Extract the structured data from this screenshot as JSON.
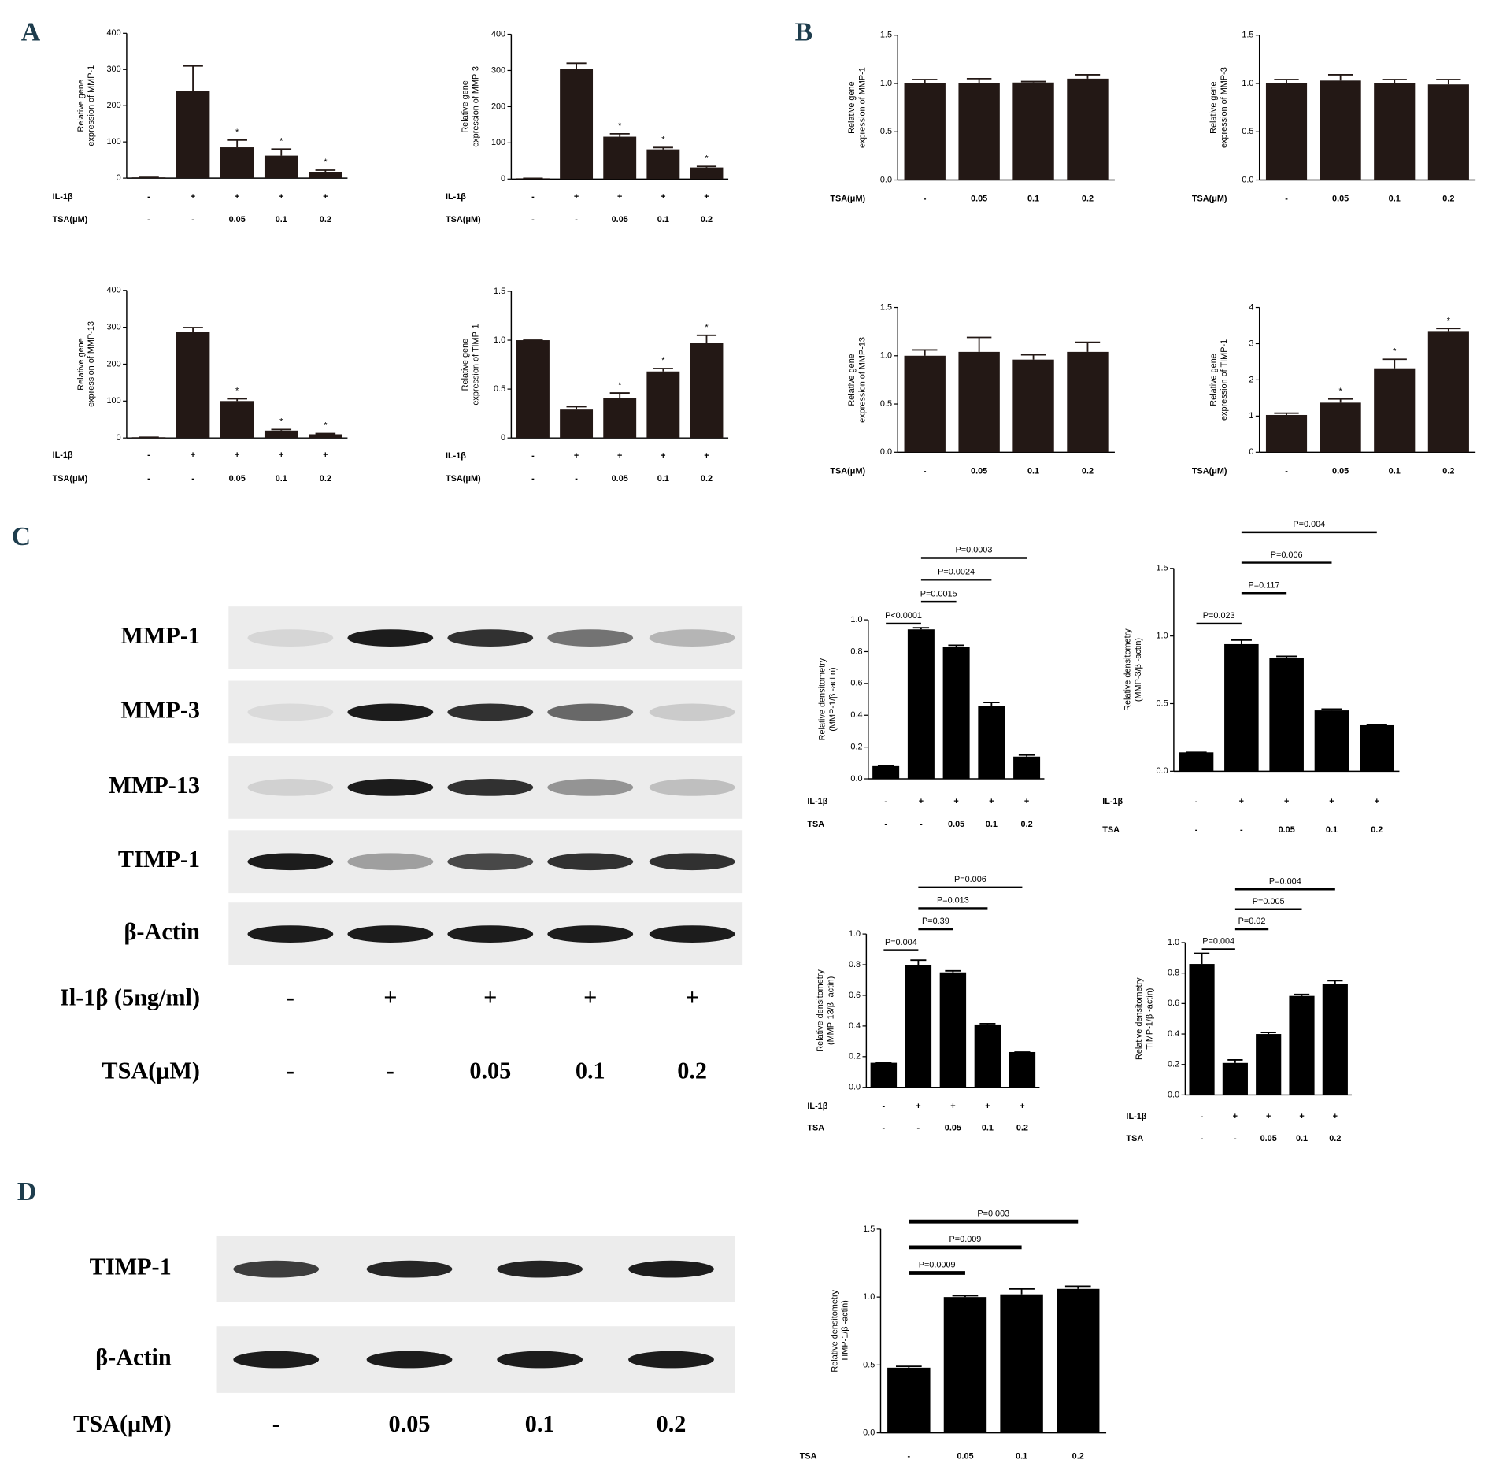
{
  "panel_labels": [
    "A",
    "B",
    "C",
    "D"
  ],
  "blot_c": {
    "proteins": [
      "MMP-1",
      "MMP-3",
      "MMP-13",
      "TIMP-1",
      "β-Actin"
    ],
    "rows": [
      {
        "name": "Il-1β (5ng/ml)",
        "labels": [
          "-",
          "+",
          "+",
          "+",
          "+"
        ]
      },
      {
        "name": "TSA(μM)",
        "labels": [
          "-",
          "-",
          "0.05",
          "0.1",
          "0.2"
        ]
      }
    ]
  },
  "blot_d": {
    "proteins": [
      "TIMP-1",
      "β-Actin"
    ],
    "rows": [
      {
        "name": "TSA(μM)",
        "labels": [
          "-",
          "0.05",
          "0.1",
          "0.2"
        ]
      }
    ]
  },
  "chart_data": [
    {
      "type": "bar",
      "ylabel": [
        "Relative gene",
        "expression of MMP-1"
      ],
      "rows": [
        {
          "name": "IL-1β",
          "labels": [
            "-",
            "+",
            "+",
            "+",
            "+"
          ]
        },
        {
          "name": "TSA(μM)",
          "labels": [
            "-",
            "-",
            "0.05",
            "0.1",
            "0.2"
          ]
        }
      ],
      "values": [
        2,
        240,
        85,
        62,
        17
      ],
      "errors": [
        0,
        70,
        20,
        18,
        5
      ],
      "annotations": [
        null,
        null,
        "*",
        "*",
        "*"
      ],
      "ylim": [
        0,
        400
      ],
      "yticks": [
        0,
        100,
        200,
        300,
        400
      ],
      "color": "#231815"
    },
    {
      "type": "bar",
      "ylabel": [
        "Relative gene",
        "expression of MMP-3"
      ],
      "rows": [
        {
          "name": "IL-1β",
          "labels": [
            "-",
            "+",
            "+",
            "+",
            "+"
          ]
        },
        {
          "name": "TSA(μM)",
          "labels": [
            "-",
            "-",
            "0.05",
            "0.1",
            "0.2"
          ]
        }
      ],
      "values": [
        2,
        305,
        117,
        82,
        32
      ],
      "errors": [
        0,
        15,
        8,
        5,
        3
      ],
      "annotations": [
        null,
        null,
        "*",
        "*",
        "*"
      ],
      "ylim": [
        0,
        400
      ],
      "yticks": [
        0,
        100,
        200,
        300,
        400
      ],
      "color": "#231815"
    },
    {
      "type": "bar",
      "ylabel": [
        "Relative gene",
        "expression of MMP-13"
      ],
      "rows": [
        {
          "name": "IL-1β",
          "labels": [
            "-",
            "+",
            "+",
            "+",
            "+"
          ]
        },
        {
          "name": "TSA(μM)",
          "labels": [
            "-",
            "-",
            "0.05",
            "0.1",
            "0.2"
          ]
        }
      ],
      "values": [
        2,
        287,
        100,
        20,
        10
      ],
      "errors": [
        0,
        12,
        6,
        3,
        2
      ],
      "annotations": [
        null,
        null,
        "*",
        "*",
        "*"
      ],
      "ylim": [
        0,
        400
      ],
      "yticks": [
        0,
        100,
        200,
        300,
        400
      ],
      "color": "#231815"
    },
    {
      "type": "bar",
      "ylabel": [
        "Relative gene",
        "expression of TIMP-1"
      ],
      "rows": [
        {
          "name": "IL-1β",
          "labels": [
            "-",
            "+",
            "+",
            "+",
            "+"
          ]
        },
        {
          "name": "TSA(μM)",
          "labels": [
            "-",
            "-",
            "0.05",
            "0.1",
            "0.2"
          ]
        }
      ],
      "values": [
        1.0,
        0.29,
        0.41,
        0.68,
        0.97
      ],
      "errors": [
        0,
        0.03,
        0.05,
        0.03,
        0.08
      ],
      "annotations": [
        null,
        null,
        "*",
        "*",
        "*"
      ],
      "ylim": [
        0,
        1.5
      ],
      "yticks": [
        0,
        0.5,
        {
          "value": 1,
          "label": "1.0"
        },
        1.5
      ],
      "color": "#231815"
    },
    {
      "type": "bar",
      "ylabel": [
        "Relative gene",
        "expression of MMP-1"
      ],
      "rows": [
        {
          "name": "TSA(μM)",
          "labels": [
            "-",
            "0.05",
            "0.1",
            "0.2"
          ]
        }
      ],
      "values": [
        1.0,
        1.0,
        1.01,
        1.05
      ],
      "errors": [
        0.04,
        0.05,
        0.01,
        0.04
      ],
      "ylim": [
        0,
        1.5
      ],
      "yticks": [
        {
          "value": 0,
          "label": "0.0"
        },
        0.5,
        {
          "value": 1,
          "label": "1.0"
        },
        1.5
      ],
      "color": "#231815"
    },
    {
      "type": "bar",
      "ylabel": [
        "Relative gene",
        "expression of MMP-3"
      ],
      "rows": [
        {
          "name": "TSA(μM)",
          "labels": [
            "-",
            "0.05",
            "0.1",
            "0.2"
          ]
        }
      ],
      "values": [
        1.0,
        1.03,
        1.0,
        0.99
      ],
      "errors": [
        0.04,
        0.06,
        0.04,
        0.05
      ],
      "ylim": [
        0,
        1.5
      ],
      "yticks": [
        {
          "value": 0,
          "label": "0.0"
        },
        0.5,
        {
          "value": 1,
          "label": "1.0"
        },
        1.5
      ],
      "color": "#231815"
    },
    {
      "type": "bar",
      "ylabel": [
        "Relative gene",
        "expression of MMP-13"
      ],
      "rows": [
        {
          "name": "TSA(μM)",
          "labels": [
            "-",
            "0.05",
            "0.1",
            "0.2"
          ]
        }
      ],
      "values": [
        1.0,
        1.04,
        0.96,
        1.04
      ],
      "errors": [
        0.06,
        0.15,
        0.05,
        0.1
      ],
      "ylim": [
        0,
        1.5
      ],
      "yticks": [
        {
          "value": 0,
          "label": "0.0"
        },
        0.5,
        {
          "value": 1,
          "label": "1.0"
        },
        1.5
      ],
      "color": "#231815"
    },
    {
      "type": "bar",
      "ylabel": [
        "Relative gene",
        "expression of TIMP-1"
      ],
      "rows": [
        {
          "name": "TSA(μM)",
          "labels": [
            "-",
            "0.05",
            "0.1",
            "0.2"
          ]
        }
      ],
      "values": [
        1.03,
        1.37,
        2.32,
        3.35
      ],
      "errors": [
        0.05,
        0.1,
        0.25,
        0.07
      ],
      "annotations": [
        null,
        "*",
        "*",
        "*"
      ],
      "ylim": [
        0,
        4
      ],
      "yticks": [
        0,
        1,
        2,
        3,
        4
      ],
      "color": "#231815"
    },
    {
      "type": "bar",
      "ylabel": [
        "Relative densitometry",
        "(MMP-1/β -actin)"
      ],
      "rows": [
        {
          "name": "IL-1β",
          "labels": [
            "-",
            "+",
            "+",
            "+",
            "+"
          ]
        },
        {
          "name": "TSA",
          "labels": [
            "-",
            "-",
            "0.05",
            "0.1",
            "0.2"
          ]
        }
      ],
      "values": [
        0.08,
        0.94,
        0.83,
        0.46,
        0.14
      ],
      "errors": [
        0,
        0.01,
        0.01,
        0.02,
        0.01
      ],
      "brackets": [
        {
          "label": "P<0.0001",
          "from": 0,
          "to": 1
        },
        {
          "label": "P=0.0015",
          "from": 1,
          "to": 2
        },
        {
          "label": "P=0.0024",
          "from": 1,
          "to": 3
        },
        {
          "label": "P=0.0003",
          "from": 1,
          "to": 4
        }
      ],
      "ylim": [
        0,
        1
      ],
      "yticks": [
        {
          "value": 0,
          "label": "0.0"
        },
        0.2,
        0.4,
        0.6,
        0.8,
        {
          "value": 1,
          "label": "1.0"
        }
      ],
      "color": "#000000"
    },
    {
      "type": "bar",
      "ylabel": [
        "Relative densitometry",
        "(MMP-3/β -actin)"
      ],
      "rows": [
        {
          "name": "IL-1β",
          "labels": [
            "-",
            "+",
            "+",
            "+",
            "+"
          ]
        },
        {
          "name": "TSA",
          "labels": [
            "-",
            "-",
            "0.05",
            "0.1",
            "0.2"
          ]
        }
      ],
      "values": [
        0.14,
        0.94,
        0.84,
        0.45,
        0.34
      ],
      "errors": [
        0,
        0.03,
        0.01,
        0.01,
        0.005
      ],
      "brackets": [
        {
          "label": "P=0.023",
          "from": 0,
          "to": 1
        },
        {
          "label": "P=0.117",
          "from": 1,
          "to": 2
        },
        {
          "label": "P=0.006",
          "from": 1,
          "to": 3
        },
        {
          "label": "P=0.004",
          "from": 1,
          "to": 4
        }
      ],
      "ylim": [
        0,
        1.5
      ],
      "yticks": [
        {
          "value": 0,
          "label": "0.0"
        },
        0.5,
        {
          "value": 1,
          "label": "1.0"
        },
        1.5
      ],
      "color": "#000000"
    },
    {
      "type": "bar",
      "ylabel": [
        "Relative densitometry",
        "(MMP-13/β -actin)"
      ],
      "rows": [
        {
          "name": "IL-1β",
          "labels": [
            "-",
            "+",
            "+",
            "+",
            "+"
          ]
        },
        {
          "name": "TSA",
          "labels": [
            "-",
            "-",
            "0.05",
            "0.1",
            "0.2"
          ]
        }
      ],
      "values": [
        0.16,
        0.8,
        0.75,
        0.41,
        0.23
      ],
      "errors": [
        0,
        0.03,
        0.01,
        0.005,
        0
      ],
      "brackets": [
        {
          "label": "P=0.004",
          "from": 0,
          "to": 1
        },
        {
          "label": "P=0.39",
          "from": 1,
          "to": 2
        },
        {
          "label": "P=0.013",
          "from": 1,
          "to": 3
        },
        {
          "label": "P=0.006",
          "from": 1,
          "to": 4
        }
      ],
      "ylim": [
        0,
        1
      ],
      "yticks": [
        {
          "value": 0,
          "label": "0.0"
        },
        0.2,
        0.4,
        0.6,
        0.8,
        {
          "value": 1,
          "label": "1.0"
        }
      ],
      "color": "#000000"
    },
    {
      "type": "bar",
      "ylabel": [
        "Relative densitometry",
        "TIMP-1/β -actin)"
      ],
      "rows": [
        {
          "name": "IL-1β",
          "labels": [
            "-",
            "+",
            "+",
            "+",
            "+"
          ]
        },
        {
          "name": "TSA",
          "labels": [
            "-",
            "-",
            "0.05",
            "0.1",
            "0.2"
          ]
        }
      ],
      "values": [
        0.86,
        0.21,
        0.4,
        0.65,
        0.73
      ],
      "errors": [
        0.07,
        0.02,
        0.01,
        0.01,
        0.02
      ],
      "brackets": [
        {
          "label": "P=0.004",
          "from": 0,
          "to": 1
        },
        {
          "label": "P=0.02",
          "from": 1,
          "to": 2
        },
        {
          "label": "P=0.005",
          "from": 1,
          "to": 3
        },
        {
          "label": "P=0.004",
          "from": 1,
          "to": 4
        }
      ],
      "ylim": [
        0,
        1
      ],
      "yticks": [
        {
          "value": 0,
          "label": "0.0"
        },
        0.2,
        0.4,
        0.6,
        0.8,
        {
          "value": 1,
          "label": "1.0"
        }
      ],
      "color": "#000000"
    },
    {
      "type": "bar",
      "ylabel": [
        "Relative densitometry",
        "TIMP-1/β -actin)"
      ],
      "rows": [
        {
          "name": "TSA",
          "labels": [
            "-",
            "0.05",
            "0.1",
            "0.2"
          ]
        }
      ],
      "values": [
        0.48,
        1.0,
        1.02,
        1.06
      ],
      "errors": [
        0.01,
        0.01,
        0.04,
        0.02
      ],
      "brackets": [
        {
          "label": "P=0.0009",
          "from": 0,
          "to": 1
        },
        {
          "label": "P=0.009",
          "from": 0,
          "to": 2
        },
        {
          "label": "P=0.003",
          "from": 0,
          "to": 3
        }
      ],
      "ylim": [
        0,
        1.5
      ],
      "yticks": [
        {
          "value": 0,
          "label": "0.0"
        },
        0.5,
        {
          "value": 1,
          "label": "1.0"
        },
        1.5
      ],
      "color": "#000000"
    }
  ]
}
